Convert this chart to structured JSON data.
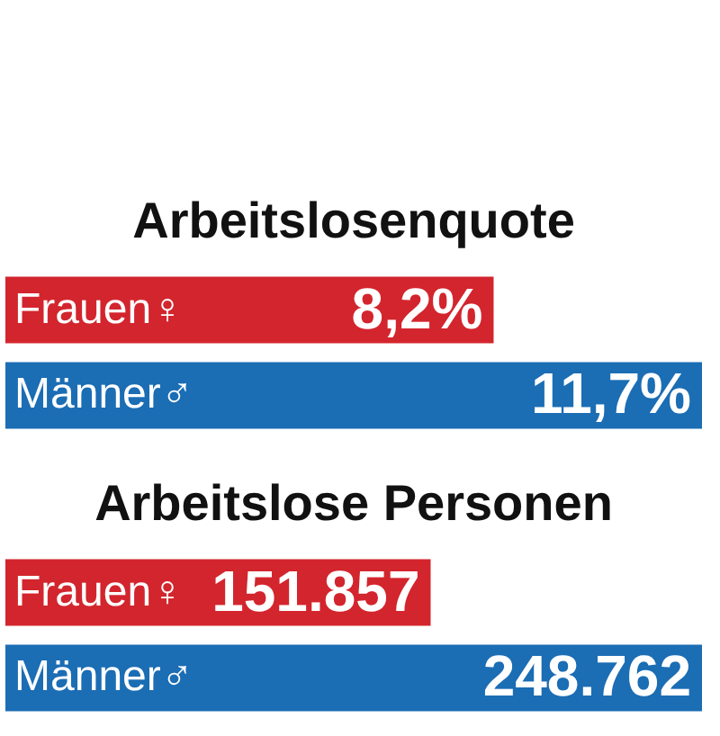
{
  "chart_data": [
    {
      "type": "bar",
      "orientation": "horizontal",
      "title": "Arbeitslosenquote",
      "categories": [
        "Frauen♀",
        "Männer♂"
      ],
      "values": [
        8.2,
        11.7
      ],
      "colors": [
        "#d3252d",
        "#1b6db4"
      ],
      "value_labels": [
        "8,2%",
        "11,7%"
      ]
    },
    {
      "type": "bar",
      "orientation": "horizontal",
      "title": "Arbeitslose Personen",
      "categories": [
        "Frauen♀",
        "Männer♂"
      ],
      "values": [
        151857,
        248762
      ],
      "colors": [
        "#d3252d",
        "#1b6db4"
      ],
      "value_labels": [
        "151.857",
        "248.762"
      ]
    }
  ]
}
